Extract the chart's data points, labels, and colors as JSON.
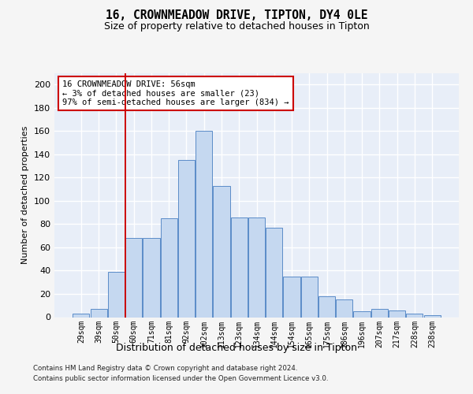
{
  "title": "16, CROWNMEADOW DRIVE, TIPTON, DY4 0LE",
  "subtitle": "Size of property relative to detached houses in Tipton",
  "xlabel": "Distribution of detached houses by size in Tipton",
  "ylabel": "Number of detached properties",
  "bar_labels": [
    "29sqm",
    "39sqm",
    "50sqm",
    "60sqm",
    "71sqm",
    "81sqm",
    "92sqm",
    "102sqm",
    "113sqm",
    "123sqm",
    "134sqm",
    "144sqm",
    "154sqm",
    "165sqm",
    "175sqm",
    "186sqm",
    "196sqm",
    "207sqm",
    "217sqm",
    "228sqm",
    "238sqm"
  ],
  "bar_heights": [
    3,
    7,
    39,
    68,
    68,
    85,
    135,
    160,
    113,
    86,
    86,
    77,
    35,
    35,
    18,
    15,
    5,
    7,
    6,
    3,
    2
  ],
  "bar_color": "#c5d8f0",
  "bar_edge_color": "#5b8cc8",
  "ylim": [
    0,
    210
  ],
  "yticks": [
    0,
    20,
    40,
    60,
    80,
    100,
    120,
    140,
    160,
    180,
    200
  ],
  "vline_color": "#cc0000",
  "annotation_text": "16 CROWNMEADOW DRIVE: 56sqm\n← 3% of detached houses are smaller (23)\n97% of semi-detached houses are larger (834) →",
  "annotation_box_facecolor": "#ffffff",
  "annotation_box_edgecolor": "#cc0000",
  "footer_line1": "Contains HM Land Registry data © Crown copyright and database right 2024.",
  "footer_line2": "Contains public sector information licensed under the Open Government Licence v3.0.",
  "fig_facecolor": "#f5f5f5",
  "plot_facecolor": "#e8eef8",
  "grid_color": "#ffffff"
}
